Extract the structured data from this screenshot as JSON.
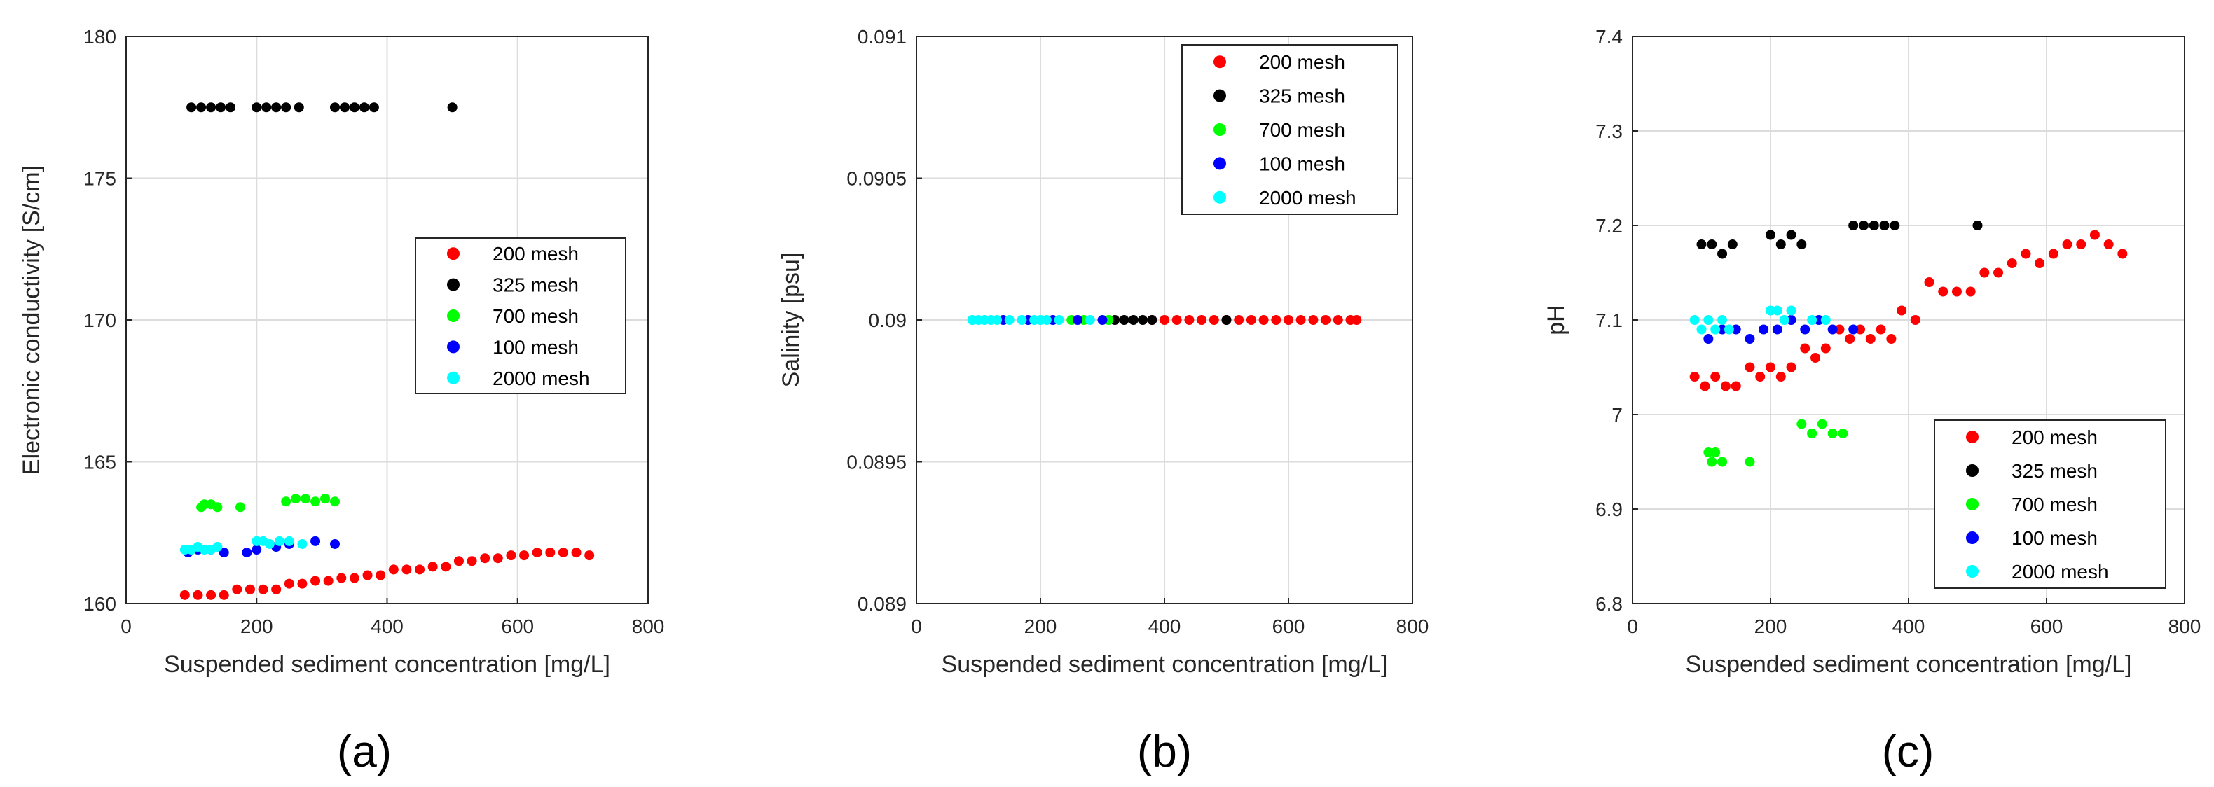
{
  "colors": {
    "200 mesh": "#ff0000",
    "325 mesh": "#000000",
    "700 mesh": "#00ff00",
    "100 mesh": "#0000ff",
    "2000 mesh": "#00ffff"
  },
  "chart_data": [
    {
      "type": "scatter",
      "panel_label": "(a)",
      "title": "",
      "xlabel": "Suspended sediment concentration [mg/L]",
      "ylabel": "Electronic conductivity [S/cm]",
      "xlim": [
        0,
        800
      ],
      "ylim": [
        160,
        180
      ],
      "xticks": [
        "0",
        "200",
        "400",
        "600",
        "800"
      ],
      "yticks": [
        "160",
        "165",
        "170",
        "175",
        "180"
      ],
      "grid": true,
      "legend_position": "center-right",
      "legend": [
        "200 mesh",
        "325 mesh",
        "700 mesh",
        "100 mesh",
        "2000 mesh"
      ],
      "series": [
        {
          "name": "200 mesh",
          "x": [
            90,
            110,
            130,
            150,
            170,
            190,
            210,
            230,
            250,
            270,
            290,
            310,
            330,
            350,
            370,
            390,
            410,
            430,
            450,
            470,
            490,
            510,
            530,
            550,
            570,
            590,
            610,
            630,
            650,
            670,
            690,
            710
          ],
          "y": [
            160.3,
            160.3,
            160.3,
            160.3,
            160.5,
            160.5,
            160.5,
            160.5,
            160.7,
            160.7,
            160.8,
            160.8,
            160.9,
            160.9,
            161.0,
            161.0,
            161.2,
            161.2,
            161.2,
            161.3,
            161.3,
            161.5,
            161.5,
            161.6,
            161.6,
            161.7,
            161.7,
            161.8,
            161.8,
            161.8,
            161.8,
            161.7
          ]
        },
        {
          "name": "325 mesh",
          "x": [
            100,
            115,
            130,
            145,
            160,
            200,
            215,
            230,
            245,
            265,
            320,
            335,
            350,
            365,
            380,
            500
          ],
          "y": [
            177.5,
            177.5,
            177.5,
            177.5,
            177.5,
            177.5,
            177.5,
            177.5,
            177.5,
            177.5,
            177.5,
            177.5,
            177.5,
            177.5,
            177.5,
            177.5
          ]
        },
        {
          "name": "700 mesh",
          "x": [
            115,
            120,
            130,
            140,
            175,
            245,
            260,
            275,
            290,
            305,
            320
          ],
          "y": [
            163.4,
            163.5,
            163.5,
            163.4,
            163.4,
            163.6,
            163.7,
            163.7,
            163.6,
            163.7,
            163.6
          ]
        },
        {
          "name": "100 mesh",
          "x": [
            95,
            110,
            130,
            150,
            185,
            200,
            230,
            250,
            290,
            320
          ],
          "y": [
            161.8,
            161.9,
            161.9,
            161.8,
            161.8,
            161.9,
            162.0,
            162.1,
            162.2,
            162.1
          ]
        },
        {
          "name": "2000 mesh",
          "x": [
            90,
            100,
            110,
            120,
            130,
            140,
            200,
            210,
            220,
            235,
            250,
            270
          ],
          "y": [
            161.9,
            161.9,
            162.0,
            161.9,
            161.9,
            162.0,
            162.2,
            162.2,
            162.1,
            162.2,
            162.2,
            162.1
          ]
        }
      ]
    },
    {
      "type": "scatter",
      "panel_label": "(b)",
      "title": "",
      "xlabel": "Suspended sediment concentration [mg/L]",
      "ylabel": "Salinity [psu]",
      "xlim": [
        0,
        800
      ],
      "ylim": [
        0.089,
        0.091
      ],
      "xticks": [
        "0",
        "200",
        "400",
        "600",
        "800"
      ],
      "yticks": [
        "0.089",
        "0.0895",
        "0.09",
        "0.0905",
        "0.091"
      ],
      "grid": true,
      "legend_position": "top-right",
      "legend": [
        "200 mesh",
        "325 mesh",
        "700 mesh",
        "100 mesh",
        "2000 mesh"
      ],
      "series": [
        {
          "name": "200 mesh",
          "x": [
            380,
            400,
            420,
            440,
            460,
            480,
            500,
            520,
            540,
            560,
            580,
            600,
            620,
            640,
            660,
            680,
            700,
            710
          ],
          "y": [
            0.09,
            0.09,
            0.09,
            0.09,
            0.09,
            0.09,
            0.09,
            0.09,
            0.09,
            0.09,
            0.09,
            0.09,
            0.09,
            0.09,
            0.09,
            0.09,
            0.09,
            0.09
          ]
        },
        {
          "name": "325 mesh",
          "x": [
            320,
            335,
            350,
            365,
            380,
            500
          ],
          "y": [
            0.09,
            0.09,
            0.09,
            0.09,
            0.09,
            0.09
          ]
        },
        {
          "name": "700 mesh",
          "x": [
            250,
            270,
            310
          ],
          "y": [
            0.09,
            0.09,
            0.09
          ]
        },
        {
          "name": "100 mesh",
          "x": [
            140,
            180,
            220,
            260,
            300
          ],
          "y": [
            0.09,
            0.09,
            0.09,
            0.09,
            0.09
          ]
        },
        {
          "name": "2000 mesh",
          "x": [
            90,
            100,
            110,
            120,
            130,
            150,
            170,
            190,
            200,
            210,
            230,
            280
          ],
          "y": [
            0.09,
            0.09,
            0.09,
            0.09,
            0.09,
            0.09,
            0.09,
            0.09,
            0.09,
            0.09,
            0.09,
            0.09
          ]
        }
      ]
    },
    {
      "type": "scatter",
      "panel_label": "(c)",
      "title": "",
      "xlabel": "Suspended sediment concentration [mg/L]",
      "ylabel": "pH",
      "xlim": [
        0,
        800
      ],
      "ylim": [
        6.8,
        7.4
      ],
      "xticks": [
        "0",
        "200",
        "400",
        "600",
        "800"
      ],
      "yticks": [
        "6.8",
        "6.9",
        "7",
        "7.1",
        "7.2",
        "7.3",
        "7.4"
      ],
      "grid": true,
      "legend_position": "bottom-right",
      "legend": [
        "200 mesh",
        "325 mesh",
        "700 mesh",
        "100 mesh",
        "2000 mesh"
      ],
      "series": [
        {
          "name": "200 mesh",
          "x": [
            90,
            105,
            120,
            135,
            150,
            170,
            185,
            200,
            215,
            230,
            250,
            265,
            280,
            300,
            315,
            330,
            345,
            360,
            375,
            390,
            410,
            430,
            450,
            470,
            490,
            510,
            530,
            550,
            570,
            590,
            610,
            630,
            650,
            670,
            690,
            710
          ],
          "y": [
            7.04,
            7.03,
            7.04,
            7.03,
            7.03,
            7.05,
            7.04,
            7.05,
            7.04,
            7.05,
            7.07,
            7.06,
            7.07,
            7.09,
            7.08,
            7.09,
            7.08,
            7.09,
            7.08,
            7.11,
            7.1,
            7.14,
            7.13,
            7.13,
            7.13,
            7.15,
            7.15,
            7.16,
            7.17,
            7.16,
            7.17,
            7.18,
            7.18,
            7.19,
            7.18,
            7.17
          ]
        },
        {
          "name": "325 mesh",
          "x": [
            100,
            115,
            130,
            145,
            200,
            215,
            230,
            245,
            320,
            335,
            350,
            365,
            380,
            500
          ],
          "y": [
            7.18,
            7.18,
            7.17,
            7.18,
            7.19,
            7.18,
            7.19,
            7.18,
            7.2,
            7.2,
            7.2,
            7.2,
            7.2,
            7.2
          ]
        },
        {
          "name": "700 mesh",
          "x": [
            110,
            115,
            120,
            130,
            170,
            245,
            260,
            275,
            290,
            305
          ],
          "y": [
            6.96,
            6.95,
            6.96,
            6.95,
            6.95,
            6.99,
            6.98,
            6.99,
            6.98,
            6.98
          ]
        },
        {
          "name": "100 mesh",
          "x": [
            110,
            130,
            150,
            170,
            190,
            210,
            230,
            250,
            270,
            290,
            320
          ],
          "y": [
            7.08,
            7.09,
            7.09,
            7.08,
            7.09,
            7.09,
            7.1,
            7.09,
            7.1,
            7.09,
            7.09
          ]
        },
        {
          "name": "2000 mesh",
          "x": [
            90,
            100,
            110,
            120,
            130,
            140,
            200,
            210,
            220,
            230,
            260,
            280
          ],
          "y": [
            7.1,
            7.09,
            7.1,
            7.09,
            7.1,
            7.09,
            7.11,
            7.11,
            7.1,
            7.11,
            7.1,
            7.1
          ]
        }
      ]
    }
  ]
}
